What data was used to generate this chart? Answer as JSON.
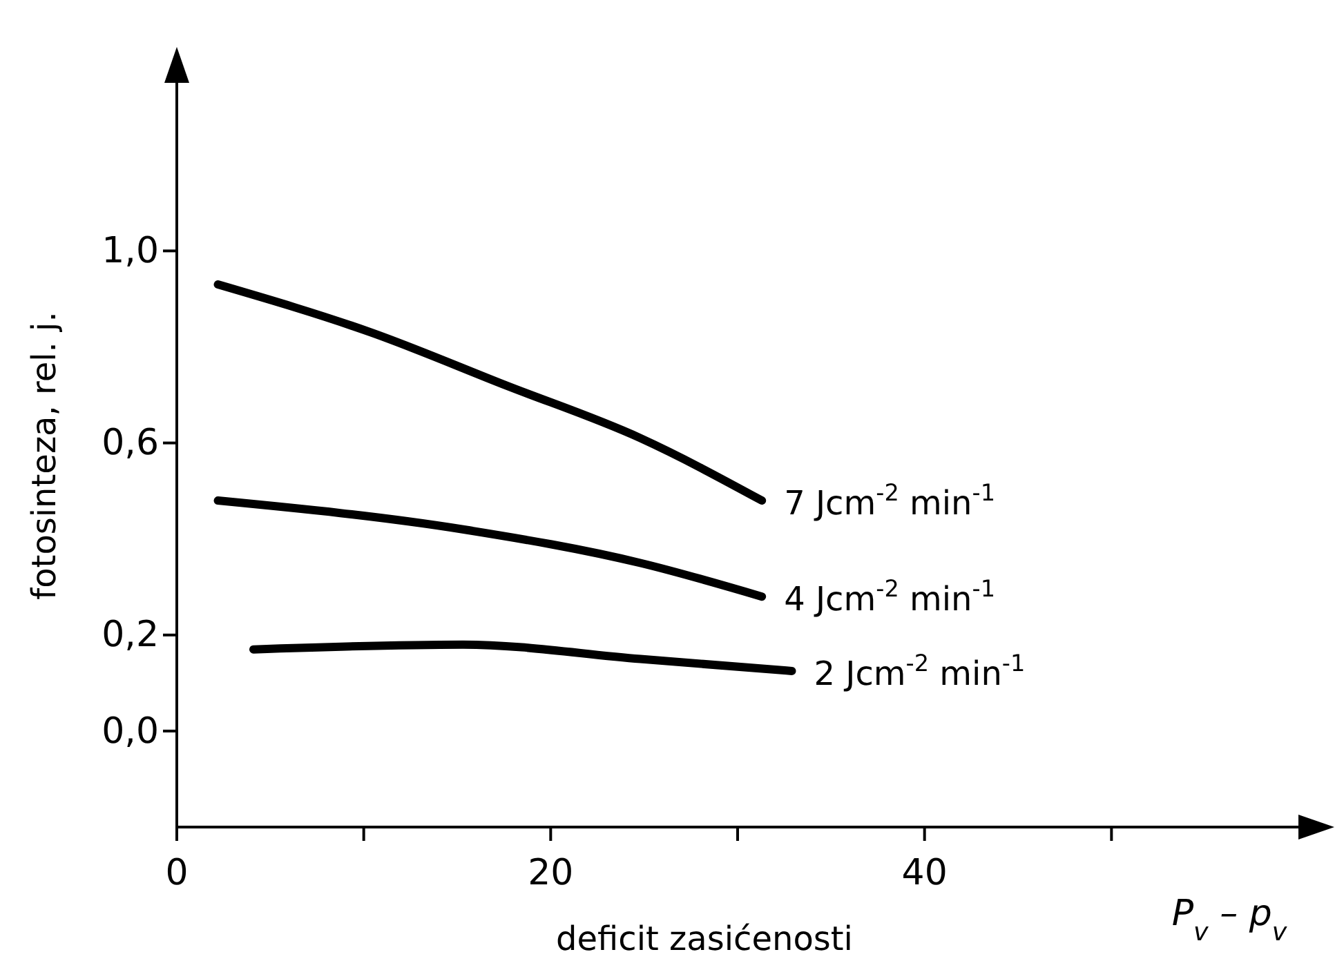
{
  "chart_data": {
    "type": "line",
    "xlabel": "deficit zasićenosti",
    "ylabel": "fotosinteza, rel. j.",
    "annotations": [
      "P$_{v}$ – p$_{v}$"
    ],
    "xlim": [
      0,
      60
    ],
    "xticks": [
      0,
      {
        "value": 10,
        "label": null
      },
      20,
      {
        "value": 30,
        "label": null
      },
      40,
      {
        "value": 50,
        "label": null
      }
    ],
    "ylim": [
      -0.2,
      1.35
    ],
    "yticks": [
      {
        "value": 0,
        "label": "0,0"
      },
      {
        "value": 0.2,
        "label": "0,2"
      },
      {
        "value": 0.6,
        "label": "0,6"
      },
      {
        "value": 1.0,
        "label": "1,0"
      }
    ],
    "grid": false,
    "legend": false,
    "marker": "none",
    "line_style": "solid",
    "series": [
      {
        "name": "7 Jcm$^{-2}$ min$^{-1}$",
        "color": "#000000",
        "x": [
          2.2,
          10.4,
          17.6,
          24.8,
          31.3
        ],
        "values": [
          0.93,
          0.83,
          0.72,
          0.61,
          0.48
        ]
      },
      {
        "name": "4 Jcm$^{-2}$ min$^{-1}$",
        "color": "#000000",
        "x": [
          2.2,
          15.3,
          24.8,
          31.3
        ],
        "values": [
          0.48,
          0.42,
          0.35,
          0.28
        ]
      },
      {
        "name": "2 Jcm$^{-2}$ min$^{-1}$",
        "color": "#000000",
        "x": [
          4.1,
          15.3,
          24.8,
          32.9
        ],
        "values": [
          0.17,
          0.18,
          0.15,
          0.125
        ]
      }
    ]
  }
}
